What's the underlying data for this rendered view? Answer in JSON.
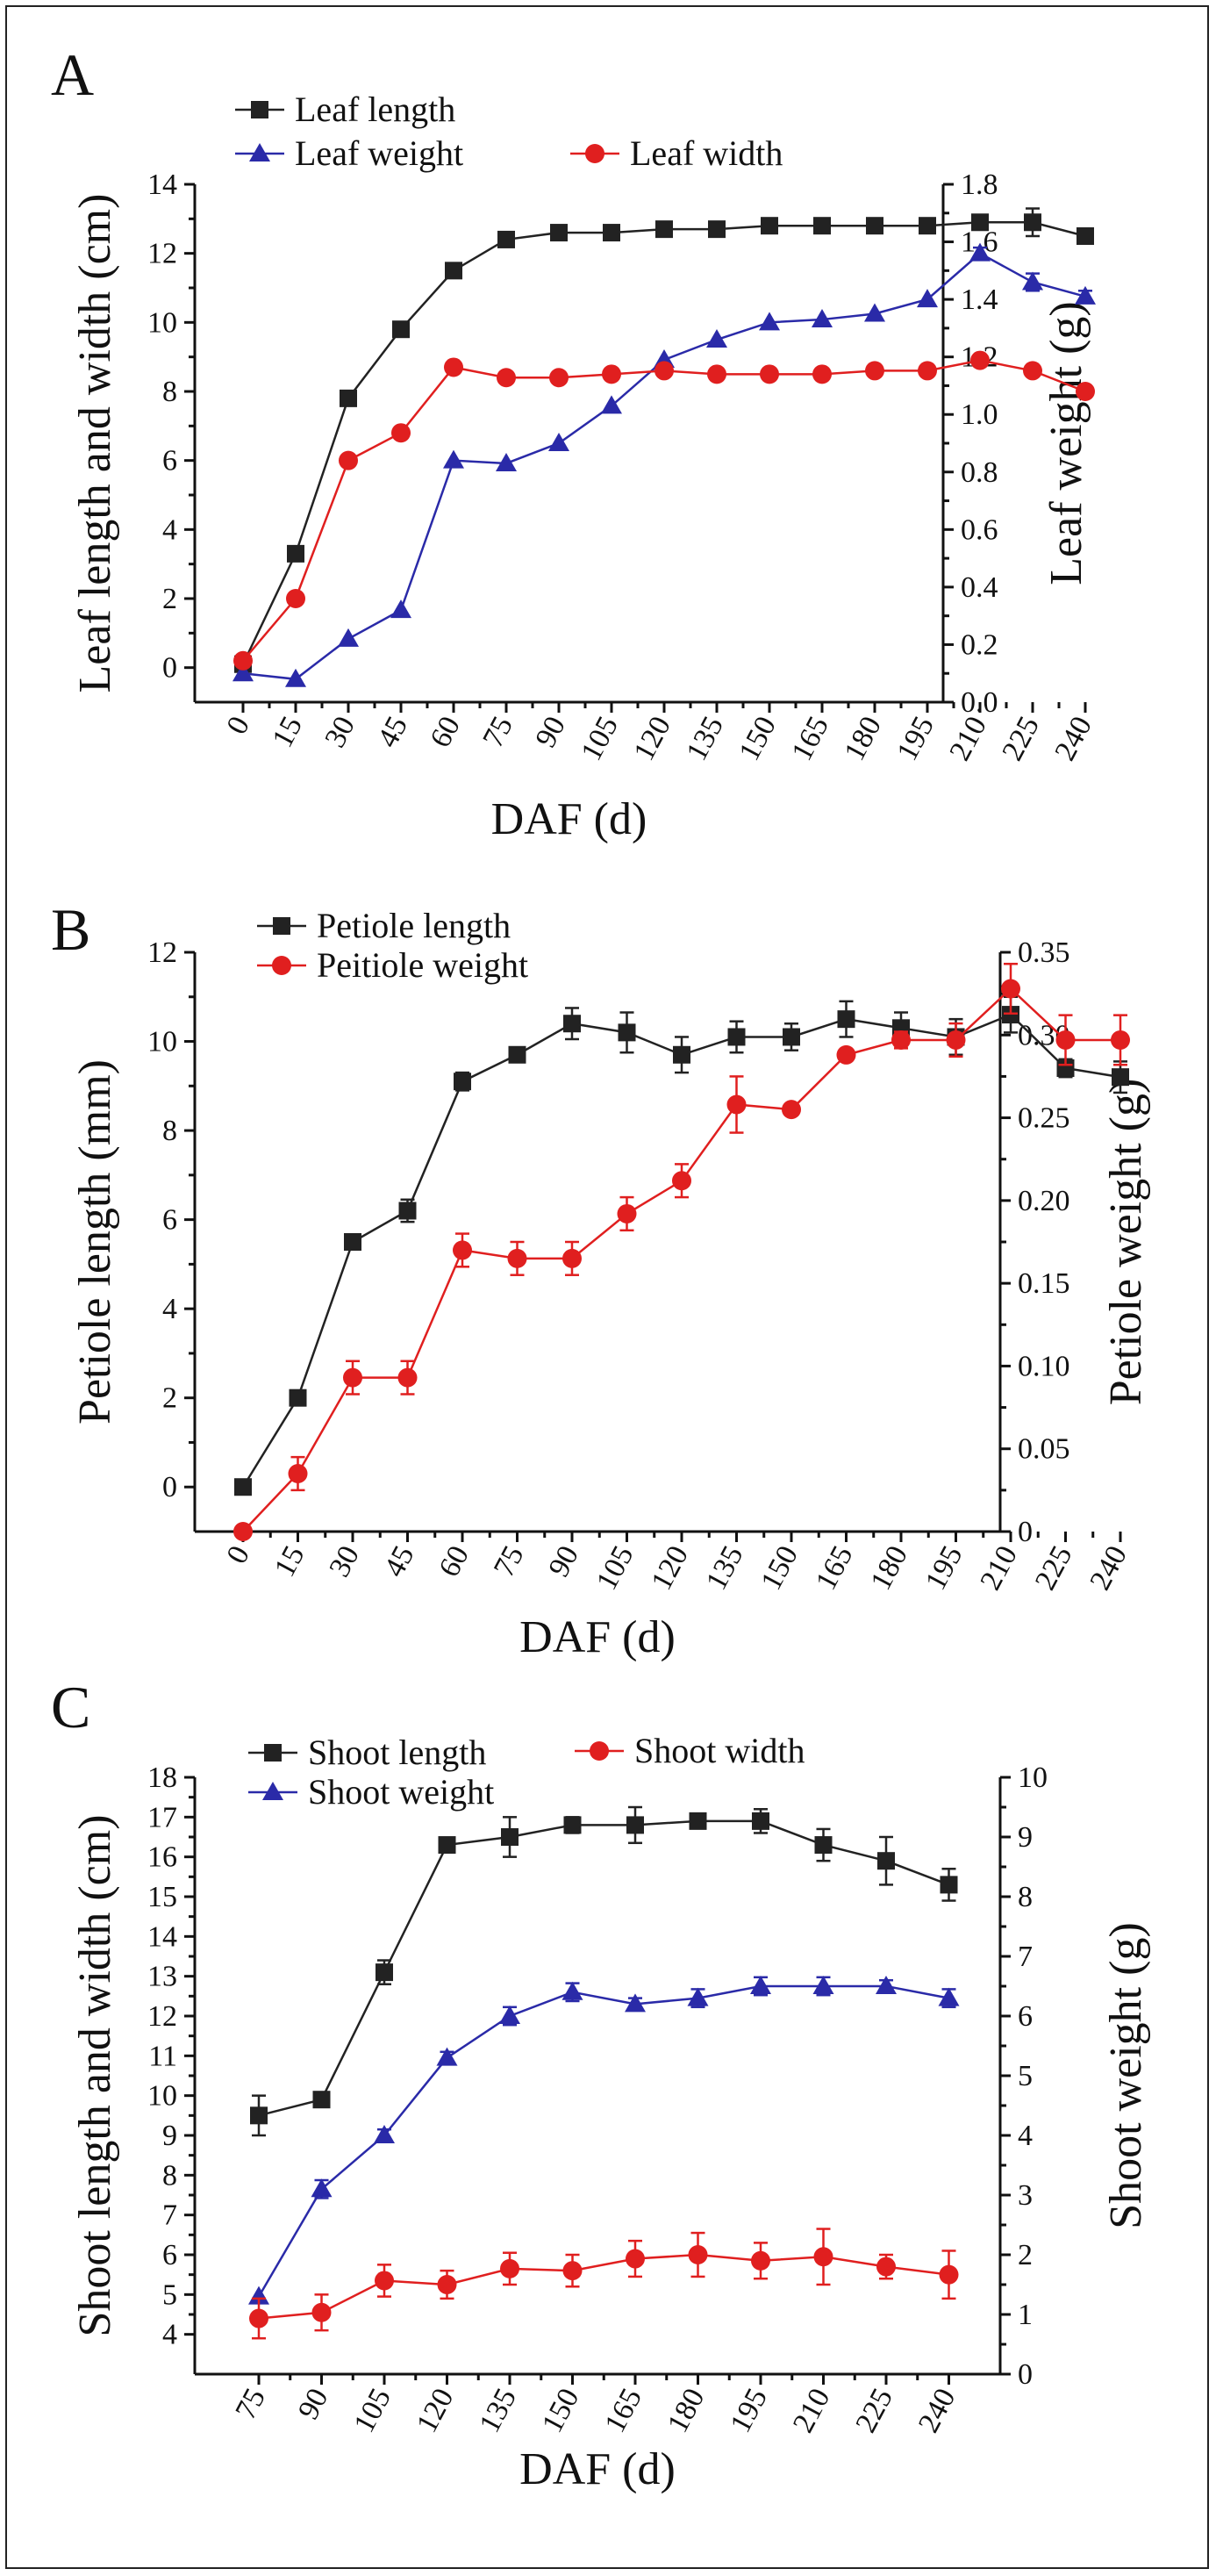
{
  "chart_data": [
    {
      "type": "line",
      "panel_label": "A",
      "xlabel": "DAF (d)",
      "ylabel_left": "Leaf length and width (cm)",
      "ylabel_right": "Leaf weight (g)",
      "categories": [
        "0",
        "15",
        "30",
        "45",
        "60",
        "75",
        "90",
        "105",
        "120",
        "135",
        "150",
        "165",
        "180",
        "195",
        "210",
        "225",
        "240"
      ],
      "ylim_left": [
        -1,
        14
      ],
      "yticks_left": [
        "0",
        "2",
        "4",
        "6",
        "8",
        "10",
        "12",
        "14"
      ],
      "ylim_right": [
        0,
        1.8
      ],
      "yticks_right": [
        "0.0",
        "0.2",
        "0.4",
        "0.6",
        "0.8",
        "1.0",
        "1.2",
        "1.4",
        "1.6",
        "1.8"
      ],
      "series": [
        {
          "name": "Leaf length",
          "axis": "left",
          "marker": "square",
          "color": "#222222",
          "values": [
            0.1,
            3.3,
            7.8,
            9.8,
            11.5,
            12.4,
            12.6,
            12.6,
            12.7,
            12.7,
            12.8,
            12.8,
            12.8,
            12.8,
            12.9,
            12.9,
            12.5
          ],
          "errors": [
            0,
            0,
            0,
            0,
            0,
            0,
            0,
            0,
            0,
            0,
            0,
            0,
            0,
            0,
            0,
            0.4,
            0.2
          ]
        },
        {
          "name": "Leaf weight",
          "axis": "right",
          "marker": "triangle",
          "color": "#2a2aa8",
          "values": [
            0.1,
            0.08,
            0.22,
            0.32,
            0.84,
            0.83,
            0.9,
            1.03,
            1.19,
            1.26,
            1.32,
            1.33,
            1.35,
            1.4,
            1.56,
            1.46,
            1.41
          ],
          "errors": [
            0,
            0,
            0,
            0,
            0,
            0,
            0,
            0,
            0,
            0,
            0,
            0,
            0,
            0,
            0.02,
            0.03,
            0.02
          ]
        },
        {
          "name": "Leaf width",
          "axis": "left",
          "marker": "circle",
          "color": "#e01f1f",
          "values": [
            0.2,
            2.0,
            6.0,
            6.8,
            8.7,
            8.4,
            8.4,
            8.5,
            8.6,
            8.5,
            8.5,
            8.5,
            8.6,
            8.6,
            8.9,
            8.6,
            8.0
          ],
          "errors": [
            0,
            0,
            0,
            0,
            0,
            0,
            0,
            0,
            0,
            0,
            0,
            0,
            0,
            0,
            0,
            0,
            0.15
          ]
        }
      ]
    },
    {
      "type": "line",
      "panel_label": "B",
      "xlabel": "DAF (d)",
      "ylabel_left": "Petiole length (mm)",
      "ylabel_right": "Petiole weight (g)",
      "categories": [
        "0",
        "15",
        "30",
        "45",
        "60",
        "75",
        "90",
        "105",
        "120",
        "135",
        "150",
        "165",
        "180",
        "195",
        "210",
        "225",
        "240"
      ],
      "ylim_left": [
        -1,
        12
      ],
      "yticks_left": [
        "0",
        "2",
        "4",
        "6",
        "8",
        "10",
        "12"
      ],
      "ylim_right": [
        0,
        0.35
      ],
      "yticks_right": [
        "0",
        "0.05",
        "0.10",
        "0.15",
        "0.20",
        "0.25",
        "0.30",
        "0.35"
      ],
      "series": [
        {
          "name": "Petiole length",
          "axis": "left",
          "marker": "square",
          "color": "#222222",
          "values": [
            0.0,
            2.0,
            5.5,
            6.2,
            9.1,
            9.7,
            10.4,
            10.2,
            9.7,
            10.1,
            10.1,
            10.5,
            10.3,
            10.1,
            10.6,
            9.4,
            9.2
          ],
          "errors": [
            0,
            0,
            0,
            0.25,
            0.2,
            0,
            0.35,
            0.45,
            0.4,
            0.35,
            0.3,
            0.4,
            0.35,
            0.4,
            0.4,
            0.2,
            0.35
          ]
        },
        {
          "name": "Peitiole weight",
          "axis": "right",
          "marker": "circle",
          "color": "#e01f1f",
          "values": [
            0.0,
            0.035,
            0.093,
            0.093,
            0.17,
            0.165,
            0.165,
            0.192,
            0.212,
            0.258,
            0.255,
            0.288,
            0.297,
            0.297,
            0.328,
            0.297,
            0.297
          ],
          "errors": [
            0,
            0.01,
            0.01,
            0.01,
            0.01,
            0.01,
            0.01,
            0.01,
            0.01,
            0.017,
            0,
            0,
            0.005,
            0.01,
            0.015,
            0.015,
            0.015
          ]
        }
      ]
    },
    {
      "type": "line",
      "panel_label": "C",
      "xlabel": "DAF (d)",
      "ylabel_left": "Shoot length and width (cm)",
      "ylabel_right": "Shoot weight (g)",
      "categories": [
        "75",
        "90",
        "105",
        "120",
        "135",
        "150",
        "165",
        "180",
        "195",
        "210",
        "225",
        "240"
      ],
      "ylim_left": [
        3,
        18
      ],
      "yticks_left": [
        "4",
        "5",
        "6",
        "7",
        "8",
        "9",
        "10",
        "11",
        "12",
        "13",
        "14",
        "15",
        "16",
        "17",
        "18"
      ],
      "ylim_right": [
        0,
        10
      ],
      "yticks_right": [
        "0",
        "1",
        "2",
        "3",
        "4",
        "5",
        "6",
        "7",
        "8",
        "9",
        "10"
      ],
      "series": [
        {
          "name": "Shoot length",
          "axis": "left",
          "marker": "square",
          "color": "#222222",
          "values": [
            9.5,
            9.9,
            13.1,
            16.3,
            16.5,
            16.8,
            16.8,
            16.9,
            16.9,
            16.3,
            15.9,
            15.3
          ],
          "errors": [
            0.5,
            0.15,
            0.3,
            0,
            0.5,
            0.2,
            0.45,
            0.15,
            0.3,
            0.4,
            0.6,
            0.4
          ]
        },
        {
          "name": "Shoot weight",
          "axis": "right",
          "marker": "triangle",
          "color": "#2a2aa8",
          "values": [
            1.3,
            3.1,
            4.0,
            5.3,
            6.0,
            6.4,
            6.2,
            6.3,
            6.5,
            6.5,
            6.5,
            6.3
          ],
          "errors": [
            0,
            0.15,
            0.1,
            0.1,
            0.15,
            0.15,
            0.1,
            0.15,
            0.15,
            0.15,
            0.1,
            0.15
          ]
        },
        {
          "name": "Shoot width",
          "axis": "left",
          "marker": "circle",
          "color": "#e01f1f",
          "values": [
            4.4,
            4.55,
            5.35,
            5.25,
            5.65,
            5.6,
            5.9,
            6.0,
            5.85,
            5.95,
            5.7,
            5.5
          ],
          "errors": [
            0.5,
            0.45,
            0.4,
            0.35,
            0.4,
            0.4,
            0.45,
            0.55,
            0.45,
            0.7,
            0.3,
            0.6
          ]
        }
      ]
    }
  ]
}
